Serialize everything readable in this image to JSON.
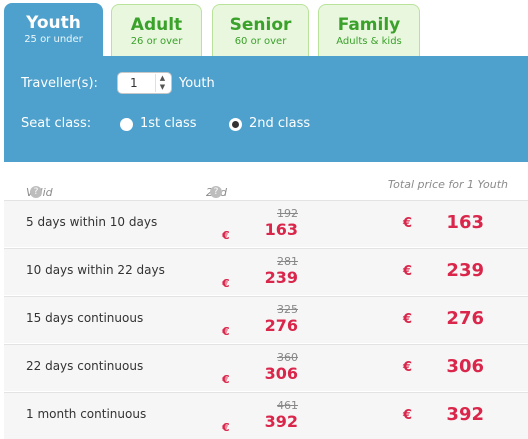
{
  "tabs": [
    {
      "label": "Youth",
      "sub": "25 or under"
    },
    {
      "label": "Adult",
      "sub": "26 or over"
    },
    {
      "label": "Senior",
      "sub": "60 or over"
    },
    {
      "label": "Family",
      "sub": "Adults & kids"
    }
  ],
  "form": {
    "travellers_label": "Traveller(s):",
    "travellers_value": "1",
    "travellers_unit": "Youth",
    "seat_class_label": "Seat class:",
    "options": [
      "1st class",
      "2nd class"
    ],
    "selected": "2nd class"
  },
  "table": {
    "headers": [
      "Valid for",
      "2nd class",
      "Total price for 1 Youth"
    ],
    "currency": "€",
    "rows": [
      {
        "label": "5 days within 10 days",
        "old": "192",
        "price": "163",
        "total": "163"
      },
      {
        "label": "10 days within 22 days",
        "old": "281",
        "price": "239",
        "total": "239"
      },
      {
        "label": "15 days continuous",
        "old": "325",
        "price": "276",
        "total": "276"
      },
      {
        "label": "22 days continuous",
        "old": "360",
        "price": "306",
        "total": "306"
      },
      {
        "label": "1 month continuous",
        "old": "461",
        "price": "392",
        "total": "392"
      }
    ]
  }
}
